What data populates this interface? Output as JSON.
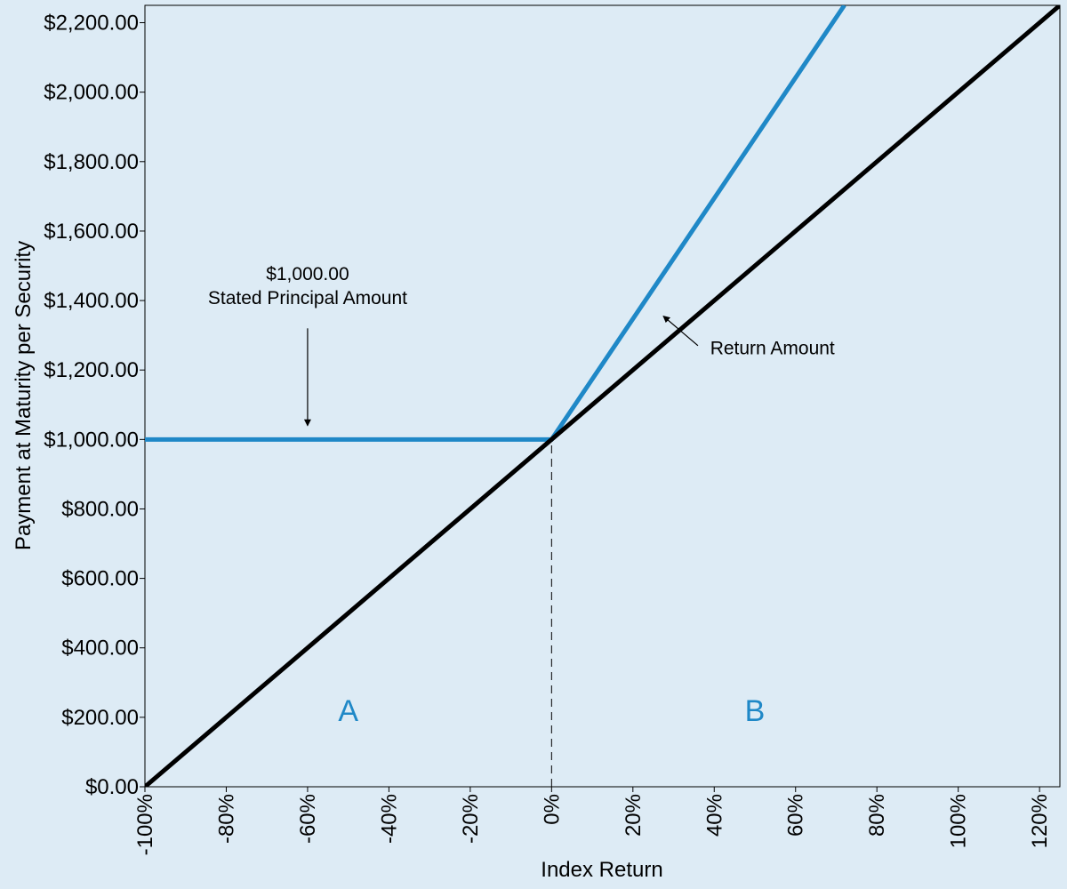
{
  "chart_data": {
    "type": "line",
    "title": "",
    "xlabel": "Index Return",
    "ylabel": "Payment at Maturity per Security",
    "xlim": [
      -100,
      125
    ],
    "ylim": [
      0,
      2250
    ],
    "x_ticks": [
      -100,
      -80,
      -60,
      -40,
      -20,
      0,
      20,
      40,
      60,
      80,
      100,
      120
    ],
    "x_tick_labels": [
      "-100%",
      "-80%",
      "-60%",
      "-40%",
      "-20%",
      "0%",
      "20%",
      "40%",
      "60%",
      "80%",
      "100%",
      "120%"
    ],
    "y_ticks": [
      0,
      200,
      400,
      600,
      800,
      1000,
      1200,
      1400,
      1600,
      1800,
      2000,
      2200
    ],
    "y_tick_labels": [
      "$0.00",
      "$200.00",
      "$400.00",
      "$600.00",
      "$800.00",
      "$1,000.00",
      "$1,200.00",
      "$1,400.00",
      "$1,600.00",
      "$1,800.00",
      "$2,000.00",
      "$2,200.00"
    ],
    "grid": false,
    "series": [
      {
        "color": "#000000",
        "points": [
          [
            -100,
            0
          ],
          [
            125,
            2250
          ]
        ]
      },
      {
        "color": "#1f88c7",
        "points": [
          [
            -100,
            1000
          ],
          [
            0,
            1000
          ],
          [
            72,
            2250
          ]
        ]
      }
    ],
    "reference_lines": [
      {
        "x": 0,
        "y_from": 0,
        "y_to": 1000,
        "style": "dashed"
      }
    ],
    "annotations": [
      {
        "lines": [
          "$1,000.00",
          "Stated Principal Amount"
        ],
        "text_at": [
          -60,
          1390
        ],
        "arrow_from": [
          -60,
          1320
        ],
        "arrow_to": [
          -60,
          1040
        ]
      },
      {
        "lines": [
          "Return Amount"
        ],
        "text_at": [
          39,
          1245
        ],
        "arrow_from": [
          36,
          1270
        ],
        "arrow_to": [
          27.5,
          1355
        ]
      }
    ],
    "regions": [
      {
        "label": "A",
        "at": [
          -50,
          190
        ],
        "color": "#1f88c7"
      },
      {
        "label": "B",
        "at": [
          50,
          190
        ],
        "color": "#1f88c7"
      }
    ]
  }
}
